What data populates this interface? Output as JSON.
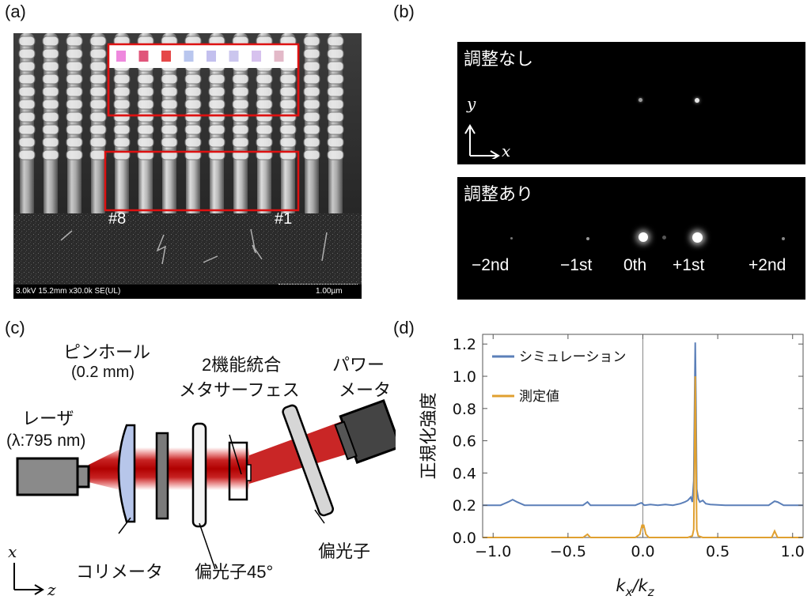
{
  "panel_a": {
    "label": "(a)",
    "sem_info": "3.0kV 15.2mm x30.0k SE(UL)",
    "scale_text": "1.00µm",
    "pillar_labels": [
      "#8",
      "#1"
    ],
    "swatch_colors": [
      "#ee88dd",
      "#e0557a",
      "#e54848",
      "#b9c6ee",
      "#c3c0ee",
      "#cbc6ee",
      "#d7c2ee",
      "#e3b9c8"
    ]
  },
  "panel_b": {
    "label": "(b)",
    "top_title": "調整なし",
    "bottom_title": "調整あり",
    "axis_y": "y",
    "axis_x": "x",
    "orders": [
      "−2nd",
      "−1st",
      "0th",
      "+1st",
      "+2nd"
    ]
  },
  "panel_c": {
    "label": "(c)",
    "pinhole": "ピンホール",
    "pinhole_size": "(0.2 mm)",
    "meta_line1": "2機能統合",
    "meta_line2": "メタサーフェス",
    "power_line1": "パワー",
    "power_line2": "メータ",
    "laser_line1": "レーザ",
    "laser_line2": "(λ:795 nm)",
    "collimator": "コリメータ",
    "polarizer45": "偏光子45°",
    "polarizer": "偏光子",
    "axis_x": "x",
    "axis_z": "z"
  },
  "panel_d": {
    "label": "(d)"
  },
  "chart_data": {
    "type": "line",
    "title": "",
    "xlabel": "k_x/k_z",
    "ylabel": "正規化強度",
    "xlim": [
      -1.07,
      1.07
    ],
    "ylim": [
      0.0,
      1.26
    ],
    "xticks": [
      "−1.0",
      "−0.5",
      "0.0",
      "0.5",
      "1.0"
    ],
    "xtick_values": [
      -1.0,
      -0.5,
      0.0,
      0.5,
      1.0
    ],
    "yticks": [
      "0.0",
      "0.2",
      "0.4",
      "0.6",
      "0.8",
      "1.0",
      "1.2"
    ],
    "ytick_values": [
      0.0,
      0.2,
      0.4,
      0.6,
      0.8,
      1.0,
      1.2
    ],
    "legend_position": "top-left",
    "series": [
      {
        "name": "シミュレーション",
        "color": "#5b7fb8",
        "x": [
          -1.07,
          -0.95,
          -0.9,
          -0.87,
          -0.84,
          -0.79,
          -0.4,
          -0.37,
          -0.35,
          -0.32,
          -0.05,
          -0.01,
          0.01,
          0.05,
          0.1,
          0.15,
          0.2,
          0.25,
          0.28,
          0.3,
          0.32,
          0.33,
          0.34,
          0.345,
          0.35,
          0.355,
          0.36,
          0.37,
          0.38,
          0.4,
          0.42,
          0.45,
          0.55,
          0.84,
          0.88,
          0.9,
          0.94,
          1.07
        ],
        "y": [
          0.2,
          0.2,
          0.22,
          0.235,
          0.22,
          0.2,
          0.2,
          0.22,
          0.2,
          0.2,
          0.2,
          0.215,
          0.2,
          0.205,
          0.2,
          0.205,
          0.2,
          0.21,
          0.22,
          0.23,
          0.25,
          0.22,
          0.35,
          0.8,
          1.21,
          0.8,
          0.3,
          0.24,
          0.22,
          0.23,
          0.21,
          0.205,
          0.2,
          0.2,
          0.225,
          0.22,
          0.2,
          0.2
        ]
      },
      {
        "name": "測定値",
        "color": "#e0a030",
        "x": [
          -1.07,
          -0.4,
          -0.37,
          -0.35,
          -0.05,
          -0.02,
          -0.005,
          0.0,
          0.005,
          0.02,
          0.04,
          0.3,
          0.33,
          0.34,
          0.345,
          0.35,
          0.355,
          0.36,
          0.37,
          0.4,
          0.86,
          0.88,
          0.9,
          1.07
        ],
        "y": [
          0.0,
          0.0,
          0.02,
          0.0,
          0.0,
          0.02,
          0.08,
          0.06,
          0.08,
          0.02,
          0.0,
          0.0,
          0.01,
          0.05,
          0.5,
          1.0,
          0.5,
          0.05,
          0.01,
          0.0,
          0.0,
          0.04,
          0.0,
          0.0
        ]
      }
    ]
  }
}
